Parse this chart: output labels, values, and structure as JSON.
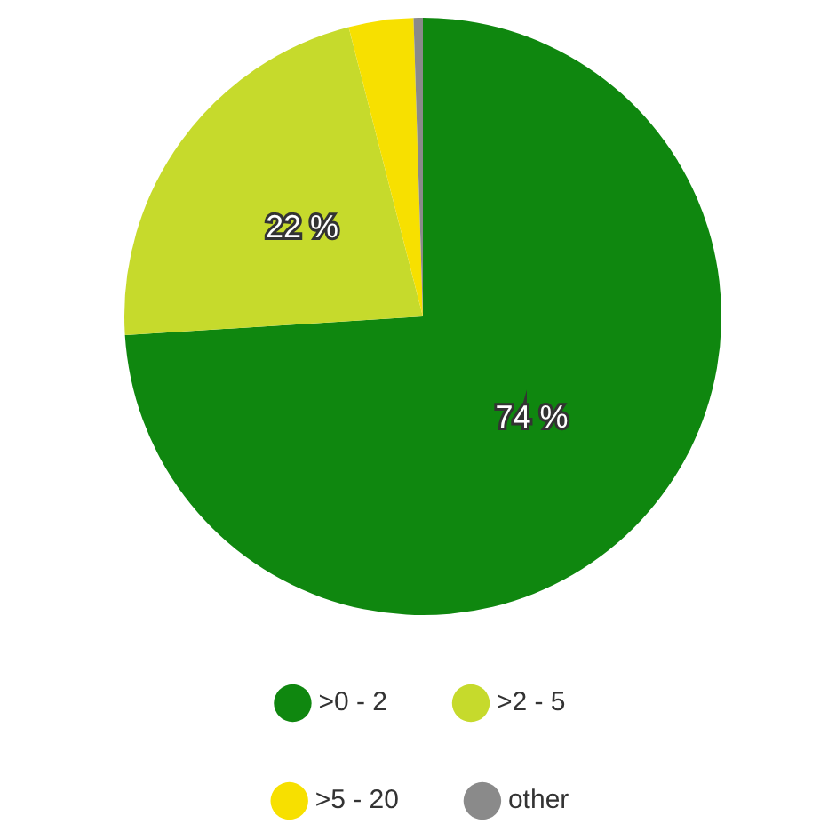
{
  "chart_data": {
    "type": "pie",
    "categories": [
      ">0 - 2",
      ">2 - 5",
      ">5 - 20",
      "other"
    ],
    "values": [
      74,
      22,
      3.5,
      0.5
    ],
    "colors": [
      "#0f870f",
      "#c6da2c",
      "#f7e000",
      "#8a8a8a"
    ],
    "value_labels": [
      "74 %",
      "22 %",
      null,
      null
    ],
    "legend": "bottom"
  }
}
